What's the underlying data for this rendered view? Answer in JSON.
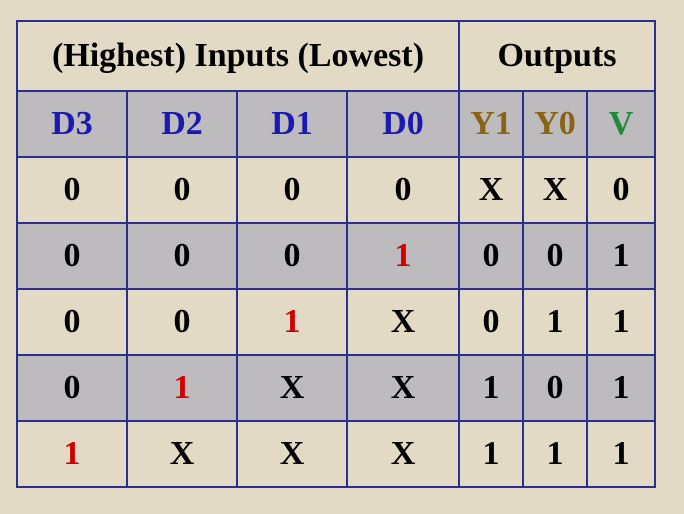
{
  "table": {
    "title_inputs": "(Highest) Inputs (Lowest)",
    "title_outputs": "Outputs",
    "columns": [
      {
        "label": "D3",
        "color": "#1a1ab0"
      },
      {
        "label": "D2",
        "color": "#1a1ab0"
      },
      {
        "label": "D1",
        "color": "#1a1ab0"
      },
      {
        "label": "D0",
        "color": "#1a1ab0"
      },
      {
        "label": "Y1",
        "color": "#8a6414"
      },
      {
        "label": "Y0",
        "color": "#8a6414"
      },
      {
        "label": "V",
        "color": "#1f8a3a"
      }
    ],
    "rows": [
      [
        "0",
        "0",
        "0",
        "0",
        "X",
        "X",
        "0"
      ],
      [
        "0",
        "0",
        "0",
        "1",
        "0",
        "0",
        "1"
      ],
      [
        "0",
        "0",
        "1",
        "X",
        "0",
        "1",
        "1"
      ],
      [
        "0",
        "1",
        "X",
        "X",
        "1",
        "0",
        "1"
      ],
      [
        "1",
        "X",
        "X",
        "X",
        "1",
        "1",
        "1"
      ]
    ],
    "highlight_color": "#d00000"
  }
}
